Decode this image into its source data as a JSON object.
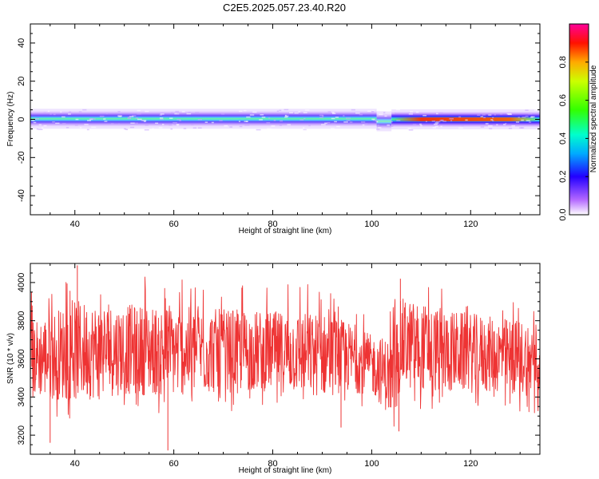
{
  "title": "C2E5.2025.057.23.40.R20",
  "chart_data": [
    {
      "type": "heatmap",
      "xlabel": "Height of straight line (km)",
      "ylabel": "Frequency (Hz)",
      "xlim": [
        31,
        134
      ],
      "ylim": [
        -50,
        50
      ],
      "xticks": [
        40,
        60,
        80,
        100,
        120
      ],
      "yticks": [
        -40,
        -20,
        0,
        20,
        40
      ],
      "colorbar": {
        "label": "Normalized spectral amplitude",
        "range": [
          0,
          1
        ],
        "ticks": [
          "0.0",
          "0.2",
          "0.4",
          "0.6",
          "0.8"
        ]
      },
      "band": {
        "center_hz": 0,
        "core_width_hz": 2,
        "outer_width_hz": 4,
        "segments": [
          {
            "x": [
              31,
              101
            ],
            "center_hz": 0.3,
            "peak_amplitude": 0.55
          },
          {
            "x": [
              101,
              104
            ],
            "center_hz": -1,
            "peak_amplitude": 0.3
          },
          {
            "x": [
              104,
              134
            ],
            "center_hz": 0.0,
            "peak_amplitude": 0.85
          }
        ]
      }
    },
    {
      "type": "line",
      "xlabel": "Height of straight line (km)",
      "ylabel": "SNR (10 * v/v)",
      "xlim": [
        31,
        134
      ],
      "ylim": [
        3100,
        4100
      ],
      "xticks": [
        40,
        60,
        80,
        100,
        120
      ],
      "yticks": [
        3200,
        3400,
        3600,
        3800,
        4000
      ],
      "color": "#ee3333",
      "envelope": [
        {
          "x": 31,
          "low": 3420,
          "mean": 3600,
          "high": 3780
        },
        {
          "x": 40,
          "low": 3400,
          "mean": 3640,
          "high": 3880
        },
        {
          "x": 50,
          "low": 3450,
          "mean": 3650,
          "high": 3880
        },
        {
          "x": 60,
          "low": 3430,
          "mean": 3640,
          "high": 3860
        },
        {
          "x": 70,
          "low": 3440,
          "mean": 3640,
          "high": 3840
        },
        {
          "x": 80,
          "low": 3460,
          "mean": 3640,
          "high": 3840
        },
        {
          "x": 90,
          "low": 3420,
          "mean": 3620,
          "high": 3820
        },
        {
          "x": 95,
          "low": 3440,
          "mean": 3610,
          "high": 3780
        },
        {
          "x": 100,
          "low": 3440,
          "mean": 3570,
          "high": 3720
        },
        {
          "x": 104,
          "low": 3300,
          "mean": 3500,
          "high": 3680
        },
        {
          "x": 106,
          "low": 3460,
          "mean": 3680,
          "high": 3900
        },
        {
          "x": 115,
          "low": 3440,
          "mean": 3640,
          "high": 3840
        },
        {
          "x": 125,
          "low": 3440,
          "mean": 3620,
          "high": 3800
        },
        {
          "x": 134,
          "low": 3420,
          "mean": 3600,
          "high": 3780
        }
      ],
      "spikes": [
        {
          "x": 40.5,
          "y": 4090
        },
        {
          "x": 58.8,
          "y": 3120
        },
        {
          "x": 35,
          "y": 3160
        },
        {
          "x": 105.5,
          "y": 3220
        },
        {
          "x": 105.8,
          "y": 4020
        },
        {
          "x": 93.8,
          "y": 3240
        }
      ]
    }
  ]
}
